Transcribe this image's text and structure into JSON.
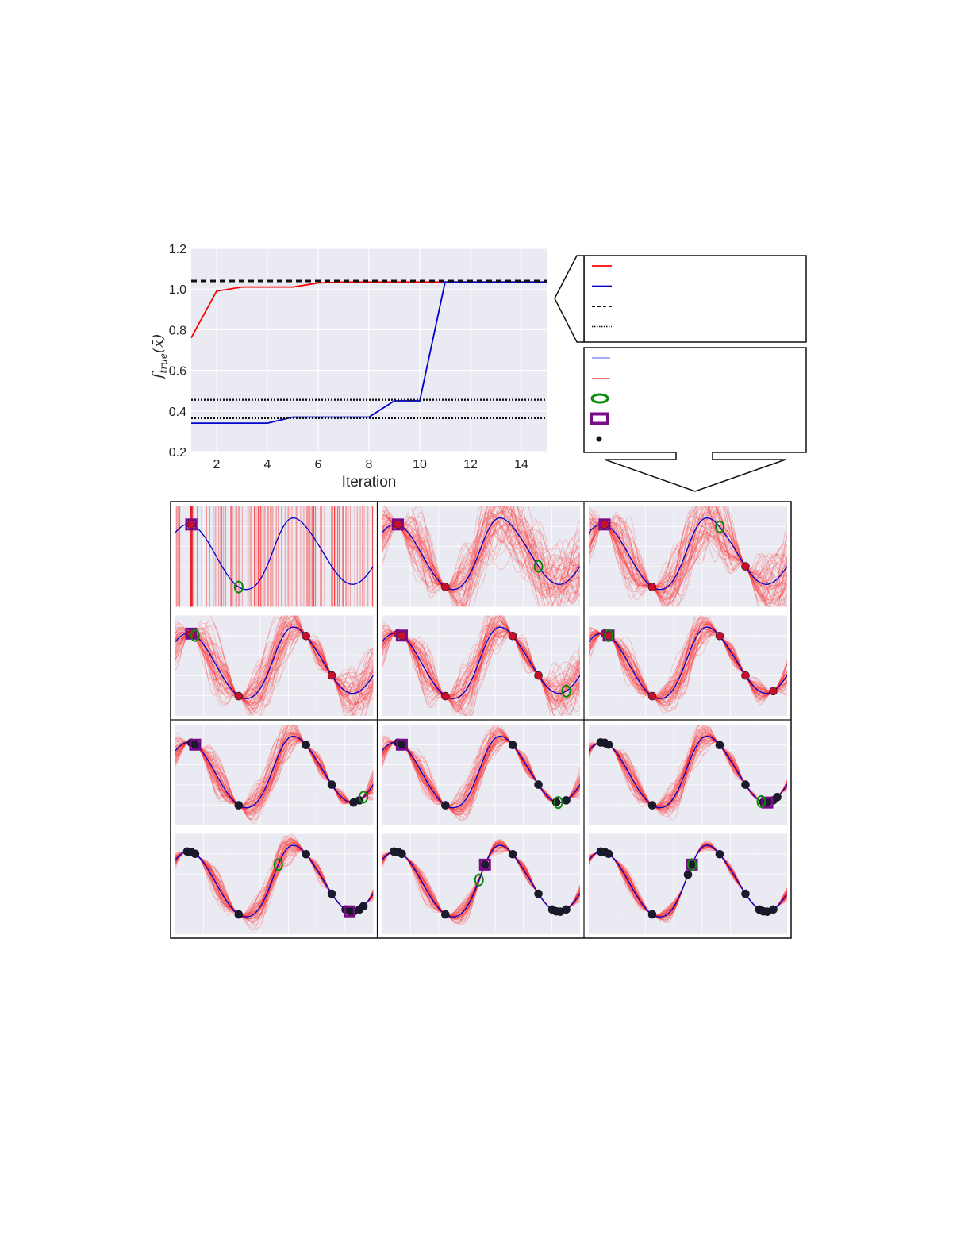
{
  "colors": {
    "panel_bg": "#eaeaf2",
    "grid": "#ffffff",
    "red": "#ff0000",
    "blue": "#0000cc",
    "ring": "#0a8a0a",
    "square": "#7a0a8a",
    "point": "#1a1a2e"
  },
  "chart_data": [
    {
      "type": "line",
      "xlabel": "Iteration",
      "ylabel": "f_true(x̄)",
      "ylabel_main": "f",
      "ylabel_sub": "true",
      "ylabel_arg": "(x̄)",
      "xlim": [
        1,
        15
      ],
      "ylim": [
        0.2,
        1.2
      ],
      "xticks": [
        "2",
        "4",
        "6",
        "8",
        "10",
        "12",
        "14"
      ],
      "yticks": [
        "0.2",
        "0.4",
        "0.6",
        "0.8",
        "1.0",
        "1.2"
      ],
      "grid": true,
      "series": [
        {
          "color": "red",
          "style": "solid",
          "x": [
            1,
            2,
            3,
            4,
            5,
            6,
            7,
            8,
            9,
            10,
            11,
            12,
            13,
            14,
            15
          ],
          "y": [
            0.76,
            0.99,
            1.01,
            1.01,
            1.01,
            1.03,
            1.035,
            1.035,
            1.035,
            1.035,
            1.035,
            1.035,
            1.035,
            1.035,
            1.035
          ]
        },
        {
          "color": "blue",
          "style": "solid",
          "x": [
            1,
            2,
            3,
            4,
            5,
            6,
            7,
            8,
            9,
            10,
            11,
            12,
            13,
            14,
            15
          ],
          "y": [
            0.34,
            0.34,
            0.34,
            0.34,
            0.37,
            0.37,
            0.37,
            0.37,
            0.45,
            0.45,
            1.035,
            1.035,
            1.035,
            1.035,
            1.035
          ]
        },
        {
          "color": "black",
          "style": "dashed",
          "x": [
            1,
            15
          ],
          "y": [
            1.04,
            1.04
          ]
        },
        {
          "color": "black",
          "style": "dotted",
          "x": [
            1,
            15
          ],
          "y": [
            0.455,
            0.455
          ]
        },
        {
          "color": "black",
          "style": "dotted",
          "x": [
            1,
            15
          ],
          "y": [
            0.365,
            0.365
          ]
        }
      ]
    },
    {
      "type": "line",
      "description_kind": "small_multiples_grid",
      "rows": 4,
      "cols": 3,
      "x_range": [
        0,
        1
      ],
      "true_function": "blue curve with minima near x=0.32, 0.66 and maxima near x=0.08, 0.52, 0.88",
      "panels": [
        {
          "observed": [
            0.08
          ],
          "square": 0.08,
          "ring": 0.32,
          "spread": 1.0
        },
        {
          "observed": [
            0.08,
            0.32
          ],
          "square": 0.08,
          "ring": 0.79,
          "spread": 0.55
        },
        {
          "observed": [
            0.08,
            0.32,
            0.79
          ],
          "square": 0.08,
          "ring": 0.66,
          "spread": 0.5
        },
        {
          "observed": [
            0.08,
            0.32,
            0.66,
            0.79
          ],
          "square": 0.08,
          "ring": 0.1,
          "spread": 0.45
        },
        {
          "observed": [
            0.08,
            0.1,
            0.32,
            0.66,
            0.79
          ],
          "square": 0.1,
          "ring": 0.93,
          "spread": 0.4
        },
        {
          "observed": [
            0.08,
            0.1,
            0.32,
            0.66,
            0.79,
            0.93
          ],
          "square": 0.1,
          "ring": 0.1,
          "spread": 0.35
        },
        {
          "observed": [
            0.08,
            0.1,
            0.32,
            0.66,
            0.79,
            0.9,
            0.93
          ],
          "square": 0.1,
          "ring": 0.95,
          "spread": 0.3
        },
        {
          "observed": [
            0.08,
            0.1,
            0.32,
            0.66,
            0.79,
            0.88,
            0.93
          ],
          "square": 0.1,
          "ring": 0.89,
          "spread": 0.28
        },
        {
          "observed": [
            0.06,
            0.08,
            0.1,
            0.32,
            0.66,
            0.79,
            0.88,
            0.9,
            0.93,
            0.95
          ],
          "square": 0.9,
          "ring": 0.87,
          "spread": 0.26
        },
        {
          "observed": [
            0.06,
            0.08,
            0.1,
            0.32,
            0.66,
            0.79,
            0.86,
            0.88,
            0.9,
            0.93,
            0.95
          ],
          "square": 0.88,
          "ring": 0.52,
          "spread": 0.24
        },
        {
          "observed": [
            0.06,
            0.08,
            0.1,
            0.32,
            0.52,
            0.66,
            0.79,
            0.86,
            0.88,
            0.9,
            0.93
          ],
          "square": 0.52,
          "ring": 0.49,
          "spread": 0.18
        },
        {
          "observed": [
            0.06,
            0.08,
            0.1,
            0.32,
            0.5,
            0.52,
            0.66,
            0.79,
            0.86,
            0.88,
            0.9,
            0.93
          ],
          "square": 0.52,
          "ring": 0.52,
          "spread": 0.14
        }
      ]
    }
  ],
  "legend_top": {
    "entries": [
      {
        "swatch": "red-line",
        "label": ""
      },
      {
        "swatch": "blue-line",
        "label": ""
      },
      {
        "swatch": "black-dashed",
        "label": ""
      },
      {
        "swatch": "black-dotted",
        "label": ""
      }
    ]
  },
  "legend_bottom": {
    "entries": [
      {
        "swatch": "blue-thin-line",
        "label": ""
      },
      {
        "swatch": "red-thin-line",
        "label": ""
      },
      {
        "swatch": "green-ring",
        "label": ""
      },
      {
        "swatch": "purple-square",
        "label": ""
      },
      {
        "swatch": "black-dot",
        "label": ""
      }
    ]
  }
}
